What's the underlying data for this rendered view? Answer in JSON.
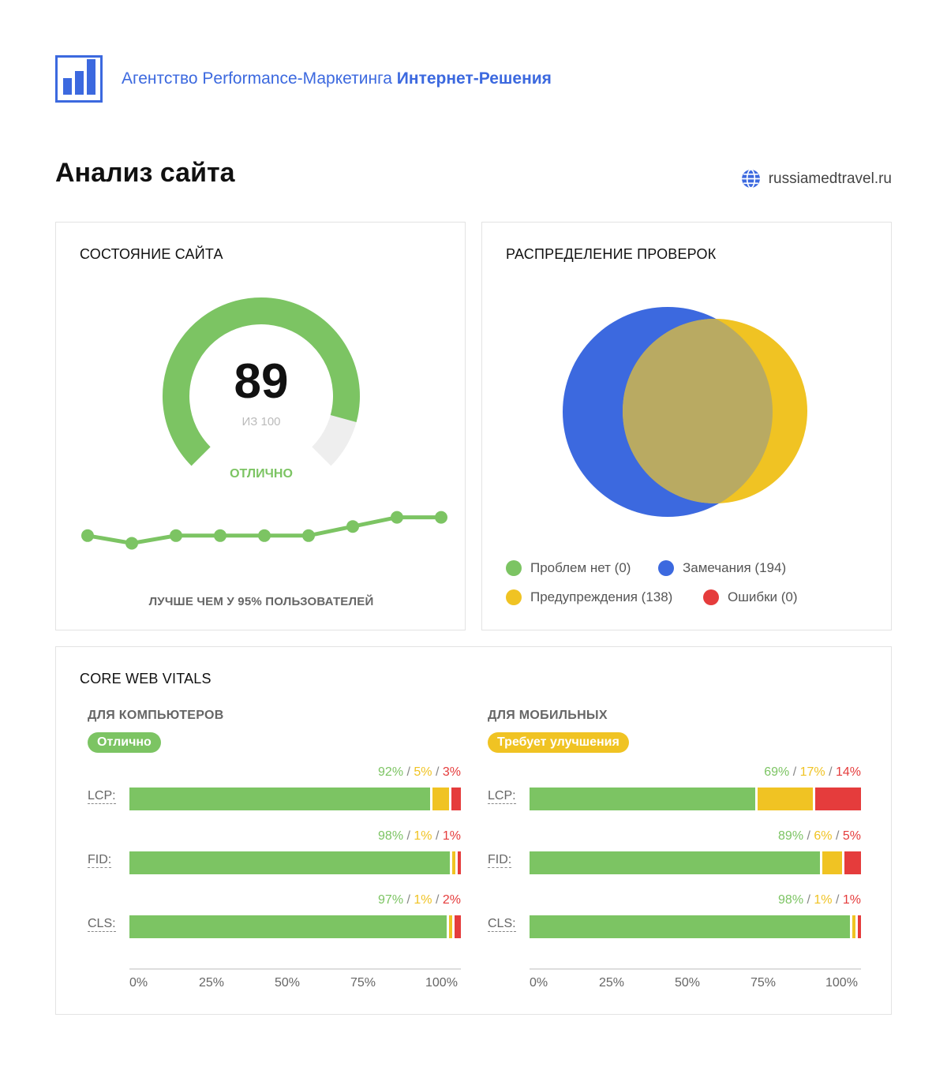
{
  "header": {
    "agency_prefix": "Агентство Performance-Маркетинга",
    "agency_name": "Интернет-Решения",
    "logo_icon": "bar-chart-logo-icon"
  },
  "page": {
    "title": "Анализ сайта",
    "site_icon": "globe-icon",
    "site_url": "russiamedtravel.ru"
  },
  "health": {
    "title": "СОСТОЯНИЕ САЙТА",
    "score": "89",
    "score_sub": "ИЗ 100",
    "rating": "ОТЛИЧНО",
    "score_value": 89,
    "score_max": 100,
    "trend_values": [
      72,
      67,
      72,
      72,
      72,
      72,
      78,
      84,
      84
    ],
    "better_than": "ЛУЧШЕ ЧЕМ У 95% ПОЛЬЗОВАТЕЛЕЙ"
  },
  "distribution": {
    "title": "РАСПРЕДЕЛЕНИЕ ПРОВЕРОК",
    "legend": {
      "ok": "Проблем нет (0)",
      "notes": "Замечания (194)",
      "warnings": "Предупреждения (138)",
      "errors": "Ошибки (0)"
    },
    "counts": {
      "ok": 0,
      "notes": 194,
      "warnings": 138,
      "errors": 0
    }
  },
  "cwv": {
    "title": "CORE WEB VITALS",
    "desktop": {
      "title": "ДЛЯ КОМПЬЮТЕРОВ",
      "badge": "Отлично",
      "metrics": [
        {
          "label": "LCP:",
          "good": "92%",
          "mid": "5%",
          "bad": "3%",
          "v": [
            92,
            5,
            3
          ]
        },
        {
          "label": "FID:",
          "good": "98%",
          "mid": "1%",
          "bad": "1%",
          "v": [
            98,
            1,
            1
          ]
        },
        {
          "label": "CLS:",
          "good": "97%",
          "mid": "1%",
          "bad": "2%",
          "v": [
            97,
            1,
            2
          ]
        }
      ],
      "axis": [
        "0%",
        "25%",
        "50%",
        "75%",
        "100%"
      ]
    },
    "mobile": {
      "title": "ДЛЯ МОБИЛЬНЫХ",
      "badge": "Требует улучшения",
      "metrics": [
        {
          "label": "LCP:",
          "good": "69%",
          "mid": "17%",
          "bad": "14%",
          "v": [
            69,
            17,
            14
          ]
        },
        {
          "label": "FID:",
          "good": "89%",
          "mid": "6%",
          "bad": "5%",
          "v": [
            89,
            6,
            5
          ]
        },
        {
          "label": "CLS:",
          "good": "98%",
          "mid": "1%",
          "bad": "1%",
          "v": [
            98,
            1,
            1
          ]
        }
      ],
      "axis": [
        "0%",
        "25%",
        "50%",
        "75%",
        "100%"
      ]
    }
  },
  "colors": {
    "brand": "#3c69df",
    "good": "#7cc463",
    "warn": "#f0c323",
    "bad": "#e53c3c",
    "track": "#eeeeee",
    "venn_overlap": "#b9aa62"
  }
}
